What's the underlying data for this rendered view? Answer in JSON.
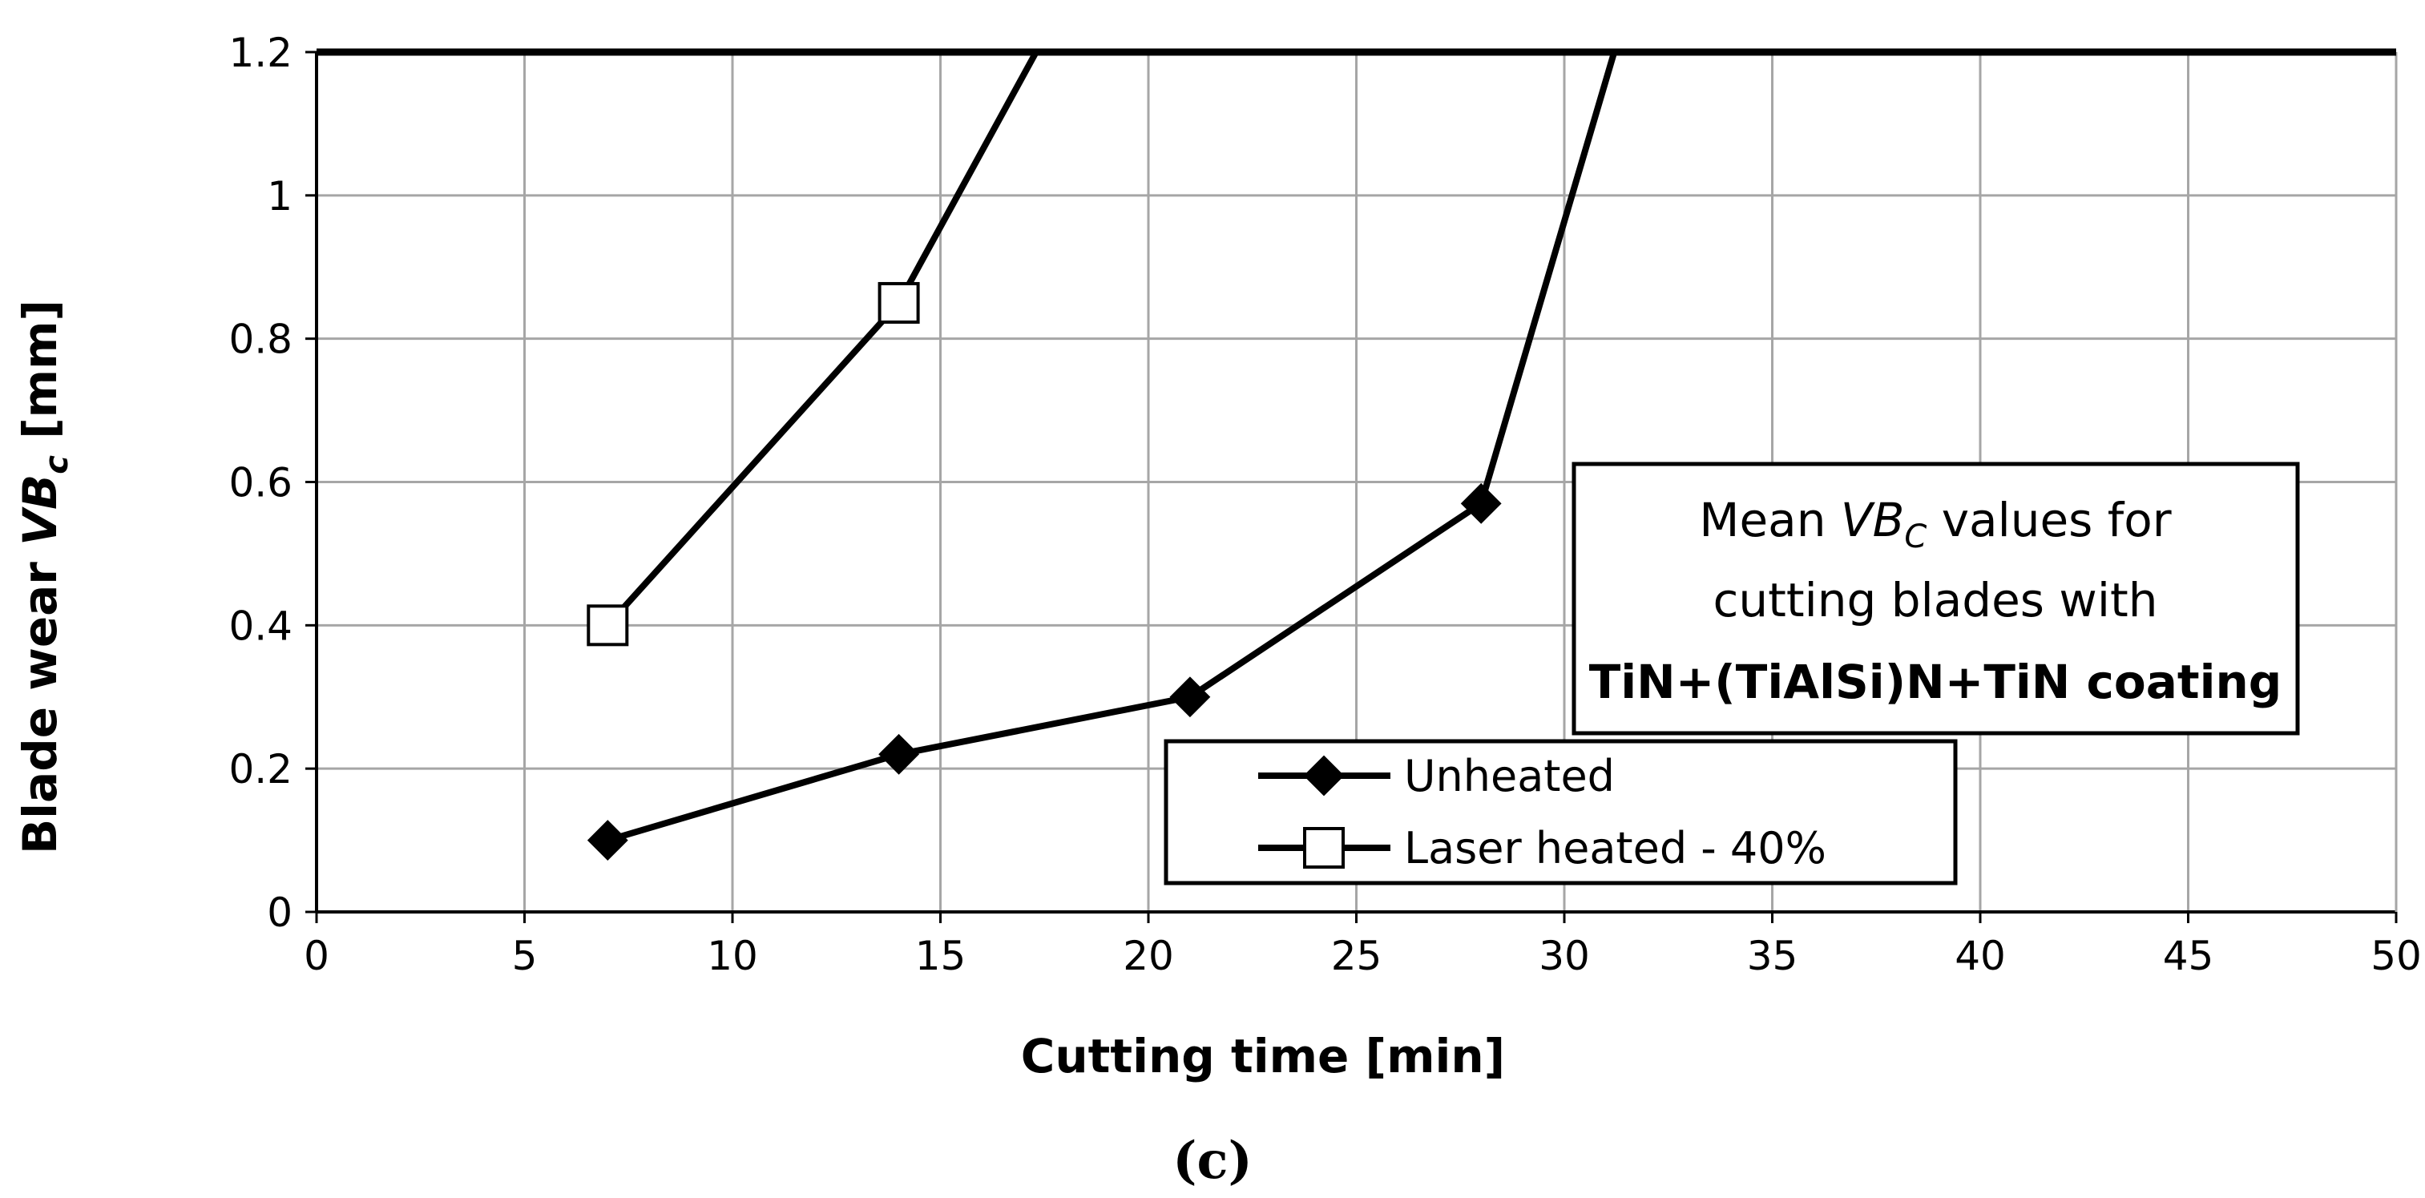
{
  "chart_data": {
    "type": "line",
    "title": "",
    "xlabel": "Cutting  time [min]",
    "ylabel_main": "Blade  wear  ",
    "ylabel_var": "VB",
    "ylabel_sub": "c",
    "ylabel_unit": " [mm]",
    "xlim": [
      0,
      50
    ],
    "ylim": [
      0,
      1.2
    ],
    "xticks": [
      "0",
      "5",
      "10",
      "15",
      "20",
      "25",
      "30",
      "35",
      "40",
      "45",
      "50"
    ],
    "yticks": [
      "0",
      "0.2",
      "0.4",
      "0.6",
      "0.8",
      "1",
      "1.2"
    ],
    "grid": true,
    "legend_position": "lower-right",
    "series": [
      {
        "name": "Unheated",
        "marker": "diamond-filled",
        "x": [
          7,
          14,
          21,
          28,
          31.2
        ],
        "y": [
          0.1,
          0.22,
          0.3,
          0.57,
          1.2
        ]
      },
      {
        "name": "Laser heated - 40%",
        "marker": "square-open",
        "x": [
          7,
          14,
          17.3
        ],
        "y": [
          0.4,
          0.85,
          1.2
        ]
      }
    ],
    "annotation": {
      "line1_pre": "Mean ",
      "line1_var": "VB",
      "line1_sub": "C",
      "line1_post": " values for",
      "line2": "cutting blades with",
      "line3": "TiN+(TiAlSi)N+TiN coating"
    },
    "panel_label": "(c)"
  }
}
